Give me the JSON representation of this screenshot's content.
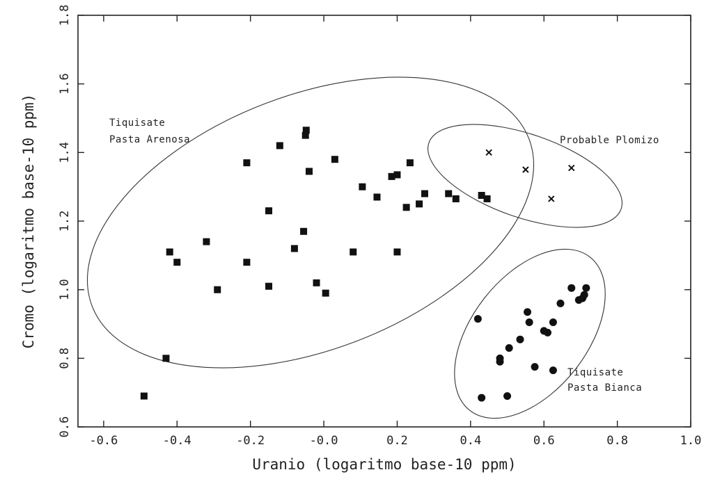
{
  "chart_data": {
    "type": "scatter",
    "title": "",
    "xlabel": "Uranio (logaritmo base-10 ppm)",
    "ylabel": "Cromo (logaritmo base-10 ppm)",
    "xlim": [
      -0.67,
      1.0
    ],
    "ylim": [
      0.6,
      1.8
    ],
    "xticks": [
      -0.6,
      -0.4,
      -0.2,
      0.0,
      0.2,
      0.4,
      0.6,
      0.8,
      1.0
    ],
    "xtick_labels": [
      "-0.6",
      "-0.4",
      "-0.2",
      "-0.0",
      "0.2",
      "0.4",
      "0.6",
      "0.8",
      "1.0"
    ],
    "yticks": [
      0.6,
      0.8,
      1.0,
      1.2,
      1.4,
      1.6,
      1.8
    ],
    "ytick_labels": [
      "0.6",
      "0.8",
      "1.0",
      "1.2",
      "1.4",
      "1.6",
      "1.8"
    ],
    "grid": false,
    "legend": "none",
    "series": [
      {
        "marker": "square",
        "color": "#111111",
        "points": [
          [
            -0.49,
            0.69
          ],
          [
            -0.43,
            0.8
          ],
          [
            -0.42,
            1.11
          ],
          [
            -0.4,
            1.08
          ],
          [
            -0.32,
            1.14
          ],
          [
            -0.29,
            1.0
          ],
          [
            -0.21,
            1.37
          ],
          [
            -0.21,
            1.08
          ],
          [
            -0.15,
            1.23
          ],
          [
            -0.15,
            1.01
          ],
          [
            -0.12,
            1.42
          ],
          [
            -0.08,
            1.12
          ],
          [
            -0.055,
            1.17
          ],
          [
            -0.05,
            1.45
          ],
          [
            -0.048,
            1.465
          ],
          [
            -0.04,
            1.345
          ],
          [
            -0.02,
            1.02
          ],
          [
            0.005,
            0.99
          ],
          [
            0.03,
            1.38
          ],
          [
            0.08,
            1.11
          ],
          [
            0.105,
            1.3
          ],
          [
            0.145,
            1.27
          ],
          [
            0.185,
            1.33
          ],
          [
            0.2,
            1.335
          ],
          [
            0.2,
            1.11
          ],
          [
            0.225,
            1.24
          ],
          [
            0.235,
            1.37
          ],
          [
            0.26,
            1.25
          ],
          [
            0.275,
            1.28
          ],
          [
            0.34,
            1.28
          ],
          [
            0.36,
            1.265
          ],
          [
            0.43,
            1.275
          ],
          [
            0.445,
            1.265
          ]
        ]
      },
      {
        "marker": "circle",
        "color": "#111111",
        "points": [
          [
            0.43,
            0.685
          ],
          [
            0.5,
            0.69
          ],
          [
            0.42,
            0.915
          ],
          [
            0.48,
            0.79
          ],
          [
            0.48,
            0.8
          ],
          [
            0.505,
            0.83
          ],
          [
            0.535,
            0.855
          ],
          [
            0.555,
            0.935
          ],
          [
            0.56,
            0.905
          ],
          [
            0.575,
            0.775
          ],
          [
            0.6,
            0.88
          ],
          [
            0.61,
            0.875
          ],
          [
            0.625,
            0.905
          ],
          [
            0.625,
            0.765
          ],
          [
            0.645,
            0.96
          ],
          [
            0.675,
            1.005
          ],
          [
            0.695,
            0.97
          ],
          [
            0.705,
            0.975
          ],
          [
            0.71,
            0.985
          ],
          [
            0.715,
            1.005
          ]
        ]
      },
      {
        "marker": "cross",
        "color": "#111111",
        "points": [
          [
            0.45,
            1.4
          ],
          [
            0.55,
            1.35
          ],
          [
            0.62,
            1.265
          ],
          [
            0.675,
            1.355
          ]
        ]
      }
    ],
    "groups": [
      {
        "label_lines": [
          "Tiquisate",
          "Pasta Arenosa"
        ]
      },
      {
        "label_lines": [
          "Probable Plomizo"
        ]
      },
      {
        "label_lines": [
          "Tiquisate",
          "Pasta Bianca"
        ]
      }
    ]
  }
}
